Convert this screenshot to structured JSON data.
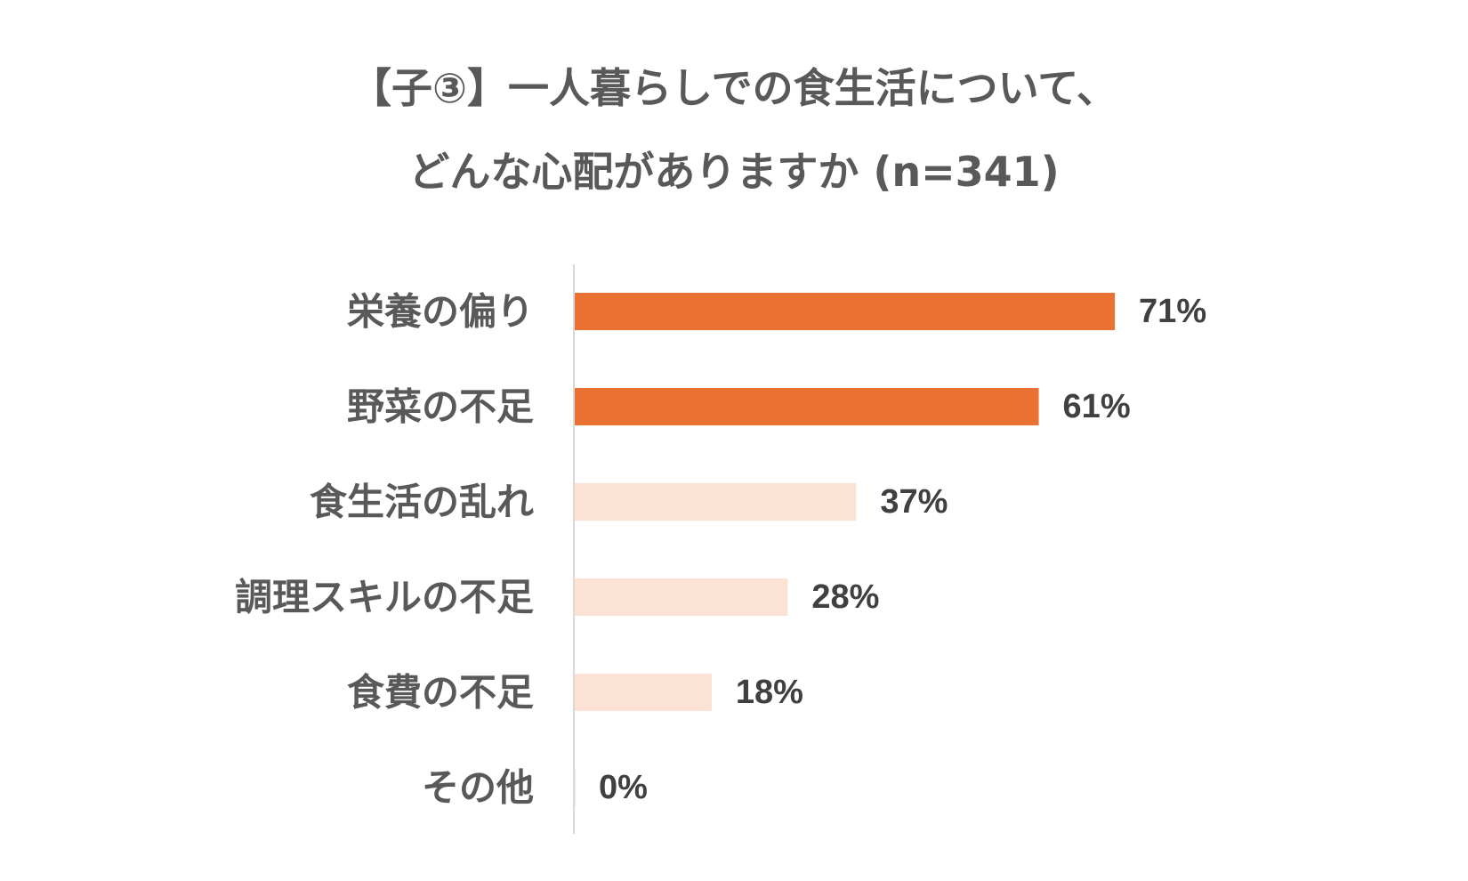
{
  "chart_data": {
    "type": "bar",
    "orientation": "horizontal",
    "title": [
      "【子③】一人暮らしでの食生活について、",
      "どんな心配がありますか (n=341)"
    ],
    "categories": [
      "栄養の偏り",
      "野菜の不足",
      "食生活の乱れ",
      "調理スキルの不足",
      "食費の不足",
      "その他"
    ],
    "values": [
      71,
      61,
      37,
      28,
      18,
      0
    ],
    "value_labels": [
      "71%",
      "61%",
      "37%",
      "28%",
      "18%",
      "0%"
    ],
    "bar_colors": [
      "#E97132",
      "#E97132",
      "#FBE2D5",
      "#FBE2D5",
      "#FBE2D5",
      "#FBE2D5"
    ],
    "value_unit": "%",
    "xlim": [
      0,
      100
    ],
    "grid": false,
    "legend": "none"
  }
}
